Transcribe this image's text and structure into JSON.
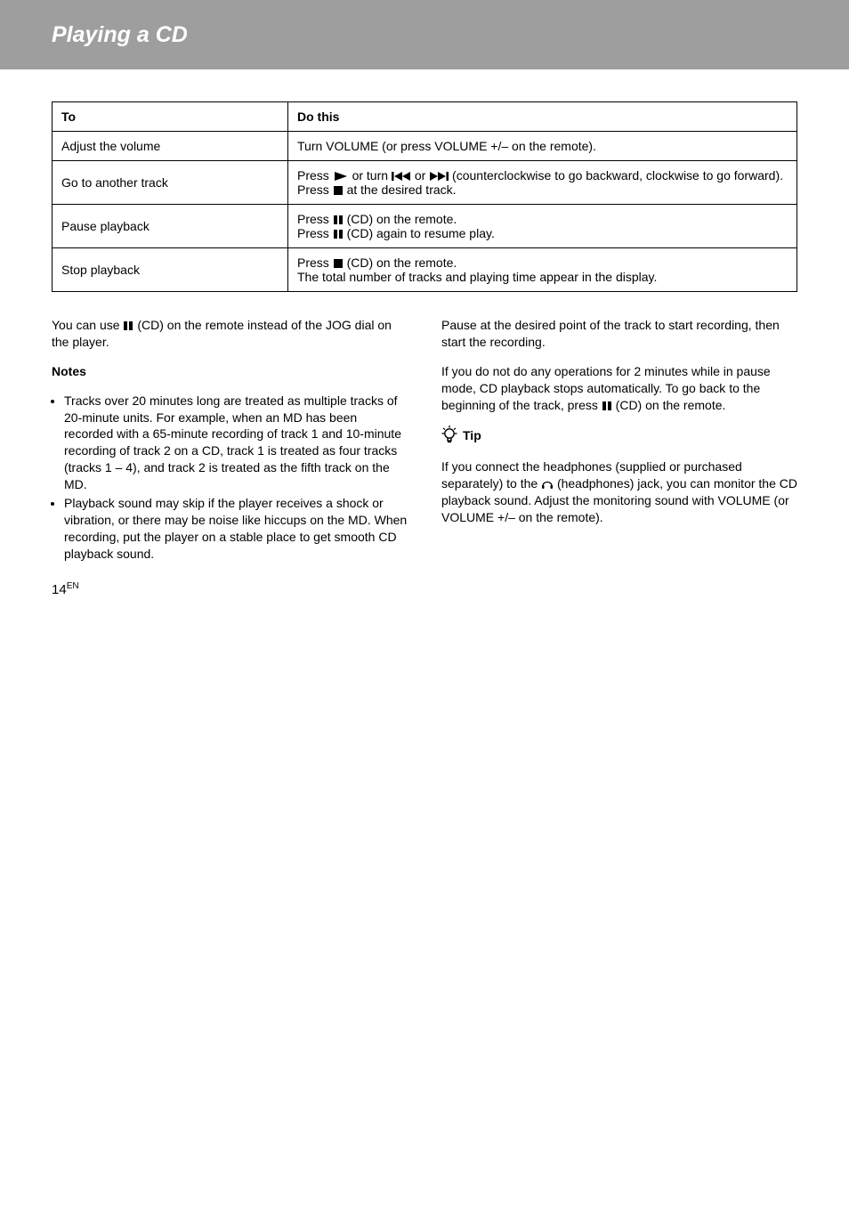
{
  "header": {
    "title": "Playing a CD"
  },
  "table": {
    "head": {
      "to": "To",
      "do": "Do this"
    },
    "rows": [
      {
        "action": "Adjust the volume",
        "do": "Turn VOLUME (or press VOLUME +/– on the remote)."
      },
      {
        "action": "Go to another track",
        "do_parts": [
          "Press ",
          {
            "icon": "play"
          },
          " or turn ",
          {
            "icon": "prev"
          },
          " or ",
          {
            "icon": "next"
          },
          " (counterclockwise to go backward, clockwise to go forward). Press ",
          {
            "icon": "stop"
          },
          " at the desired track."
        ]
      },
      {
        "action": "Pause playback",
        "do_parts": [
          "Press ",
          {
            "icon": "pause"
          },
          " (CD) on the remote.",
          {
            "br": true
          },
          "Press ",
          {
            "icon": "pause"
          },
          " (CD) again to resume play."
        ]
      },
      {
        "action": "Stop playback",
        "do_parts": [
          "Press ",
          {
            "icon": "stop"
          },
          " (CD) on the remote.",
          {
            "br": true
          },
          "The total number of tracks and playing time appear in the display."
        ]
      }
    ]
  },
  "left": {
    "p1_a": "You can use ",
    "p1_b": " (CD) on the remote instead of the JOG dial on the player.",
    "note_title": "Notes",
    "notes": [
      "Tracks over 20 minutes long are treated as multiple tracks of 20-minute units. For example, when an MD has been recorded with a 65-minute recording of track 1 and 10-minute recording of track 2 on a CD, track 1 is treated as four tracks (tracks 1 – 4), and track 2 is treated as the fifth track on the MD.",
      "Playback sound may skip if the player receives a shock or vibration, or there may be noise like hiccups on the MD. When recording, put the player on a stable place to get smooth CD playback sound."
    ],
    "page_number": "14"
  },
  "right": {
    "p1": "Pause at the desired point of the track to start recording, then start the recording.",
    "p2_a": "If you do not do any operations for 2 minutes while in pause mode, CD playback stops automatically. To go back to the beginning of the track, press ",
    "p2_b": " (CD) on the remote.",
    "tip_title": " Tip",
    "tip_text_a": "If you connect the headphones (supplied or purchased separately) to the ",
    "tip_text_b": " (headphones) jack, you can monitor the CD playback sound. Adjust the monitoring sound with VOLUME (or VOLUME +/– on the remote)."
  }
}
